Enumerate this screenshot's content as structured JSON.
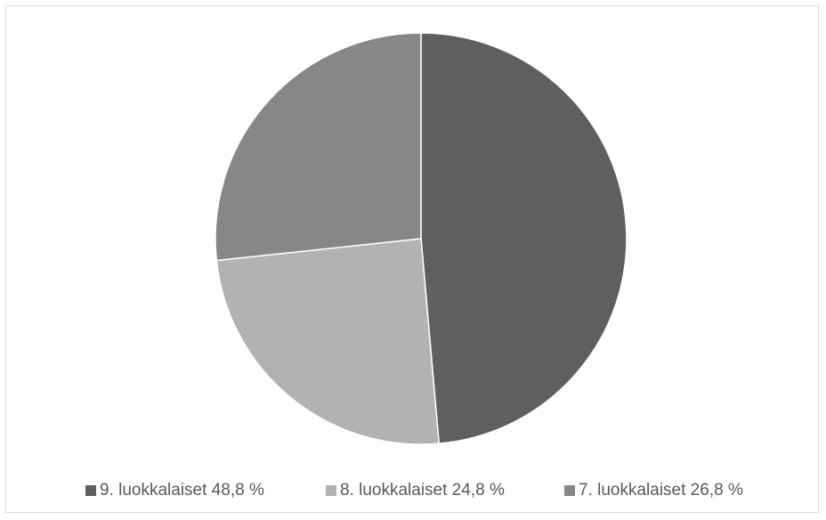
{
  "chart_data": {
    "type": "pie",
    "slices": [
      {
        "label": "9. luokkalaiset 48,8 %",
        "value": 48.8,
        "color": "#5f5f5f"
      },
      {
        "label": "8. luokkalaiset 24,8 %",
        "value": 24.8,
        "color": "#b2b2b2"
      },
      {
        "label": "7. luokkalaiset 26,8 %",
        "value": 26.8,
        "color": "#878787"
      }
    ],
    "legend_position": "bottom"
  }
}
